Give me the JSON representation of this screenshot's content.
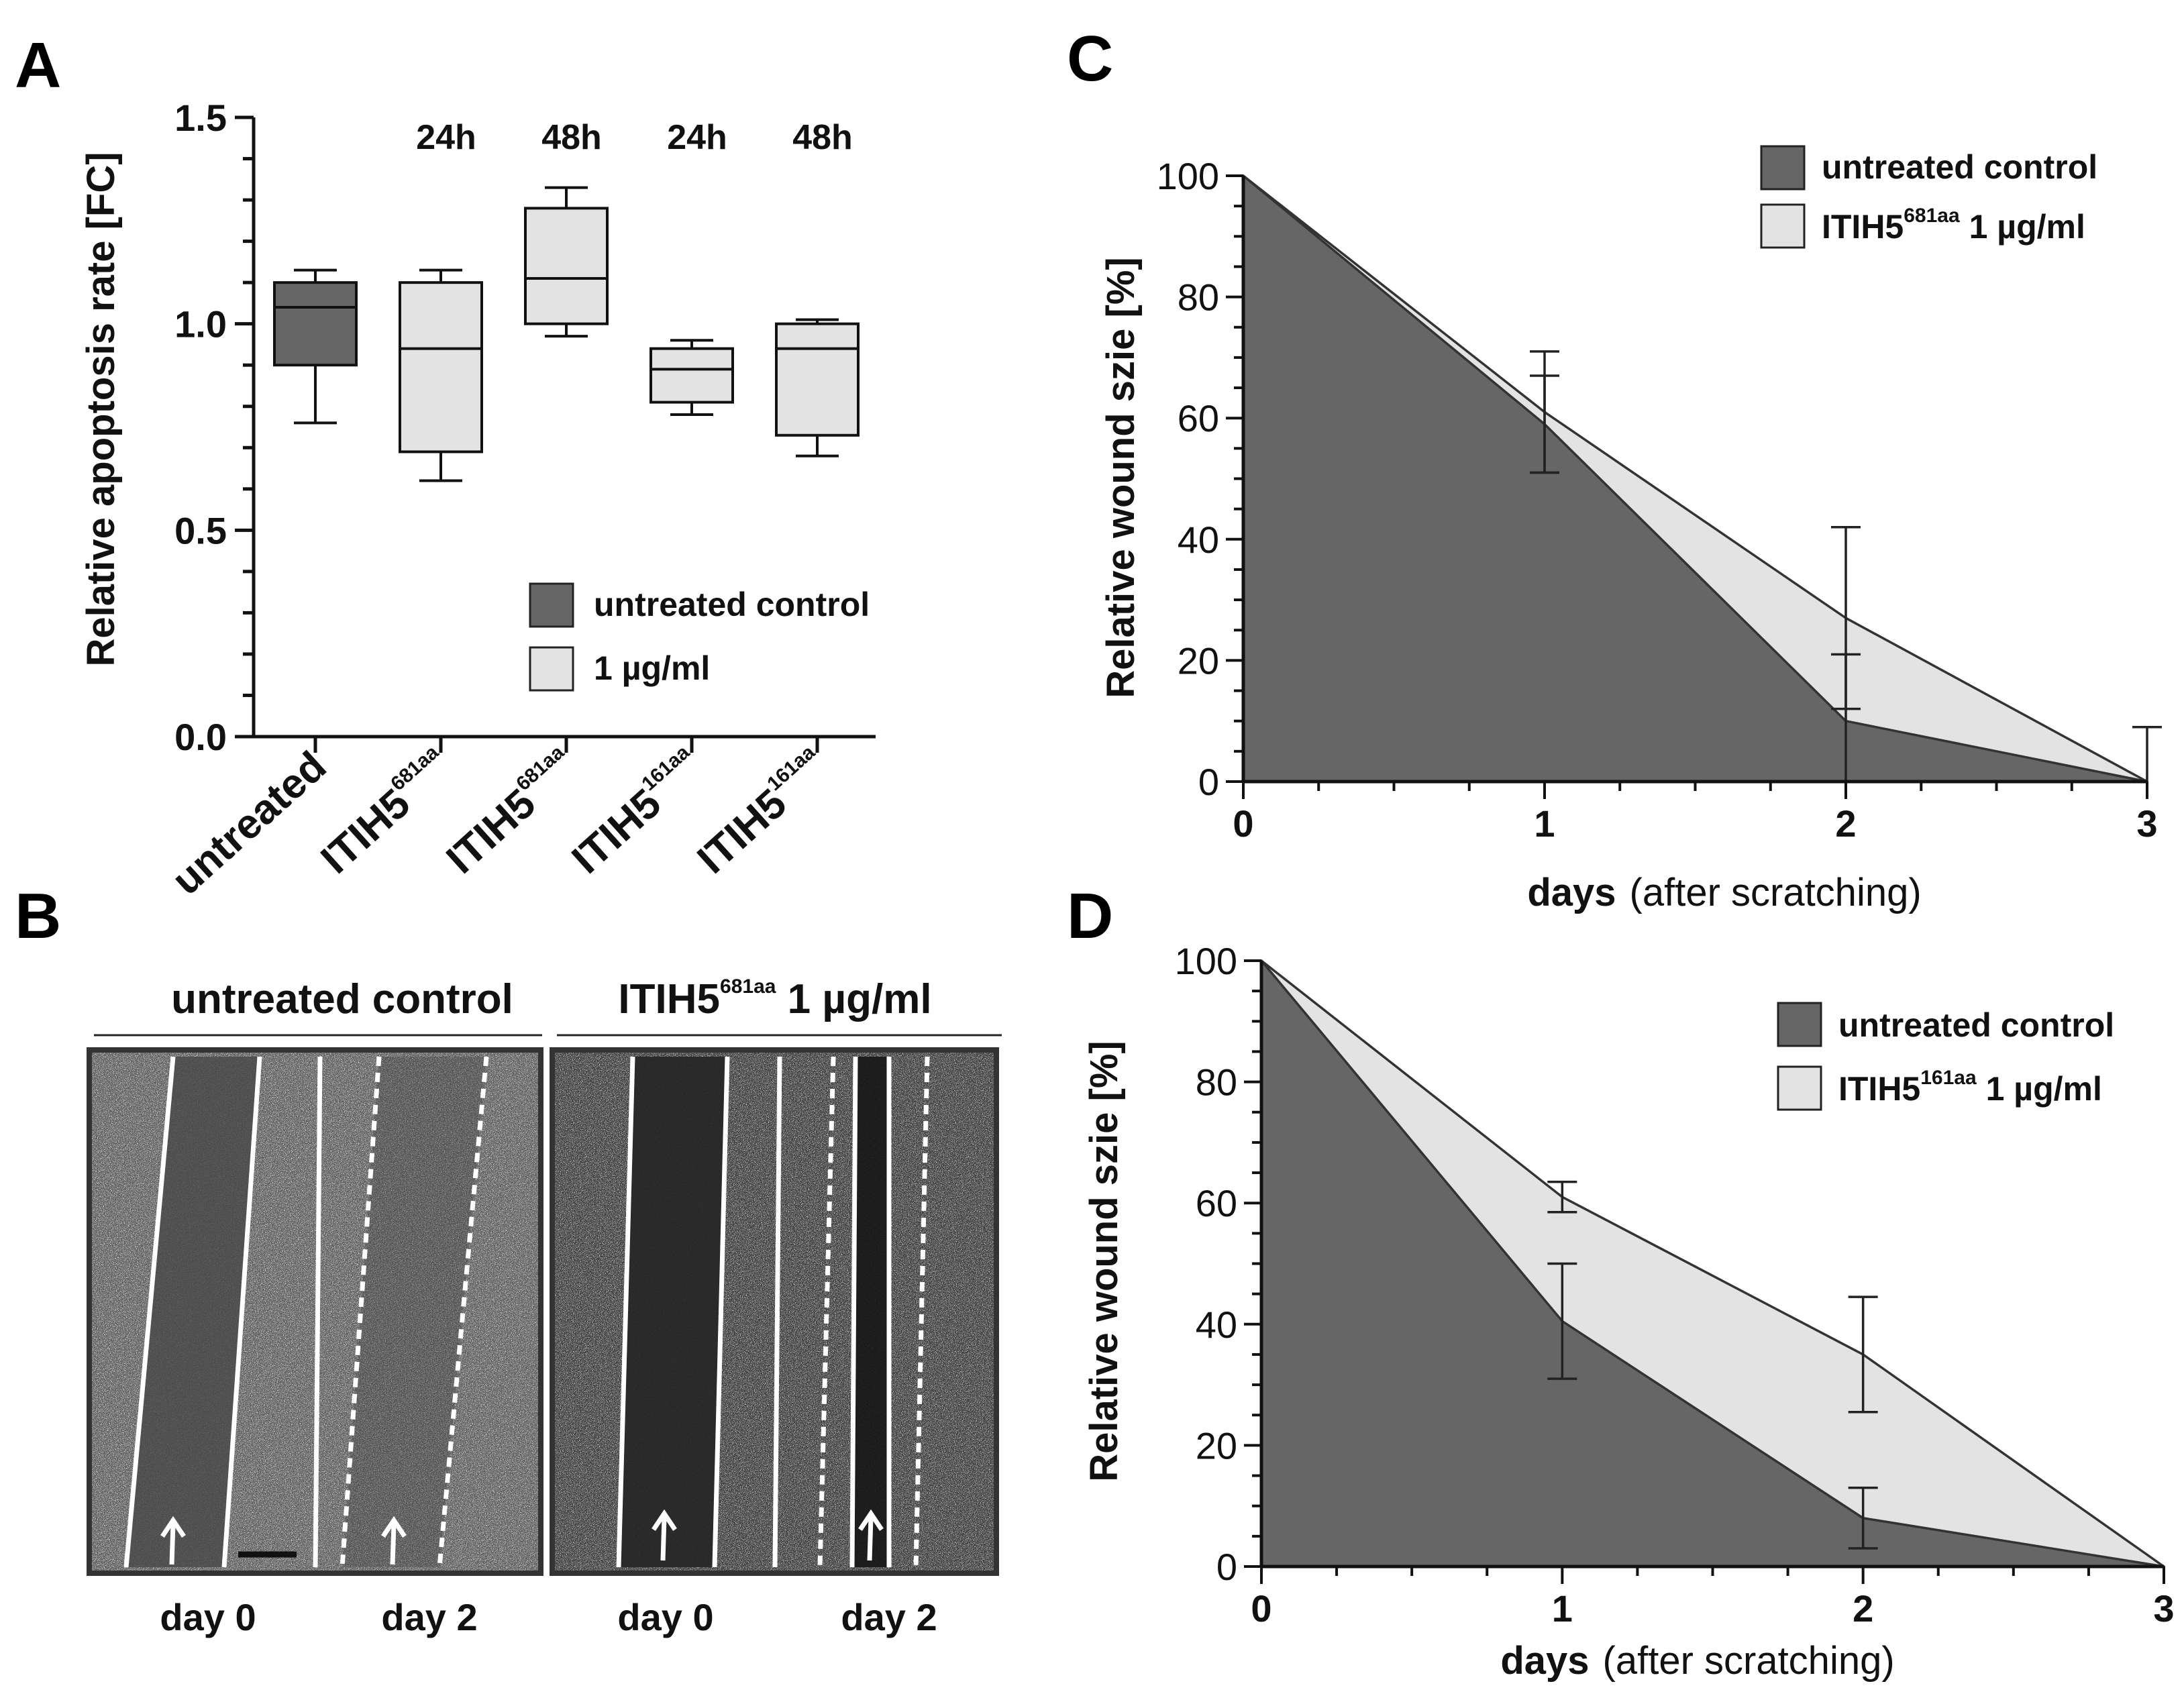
{
  "colors": {
    "dark": "#666666",
    "light": "#e3e3e3",
    "axis": "#111111"
  },
  "panels": {
    "A": "A",
    "B": "B",
    "C": "C",
    "D": "D"
  },
  "chart_data": [
    {
      "id": "A",
      "type": "box",
      "ylabel": "Relative apoptosis rate [FC]",
      "ylim": [
        0.0,
        1.5
      ],
      "yticks": [
        "0.0",
        "0.5",
        "1.0",
        "1.5"
      ],
      "categories": [
        {
          "main": "untreated",
          "sup": "",
          "time": "",
          "fill": "dark"
        },
        {
          "main": "ITIH5",
          "sup": "681aa",
          "time": "24h",
          "fill": "light"
        },
        {
          "main": "ITIH5",
          "sup": "681aa",
          "time": "48h",
          "fill": "light"
        },
        {
          "main": "ITIH5",
          "sup": "161aa",
          "time": "24h",
          "fill": "light"
        },
        {
          "main": "ITIH5",
          "sup": "161aa",
          "time": "48h",
          "fill": "light"
        }
      ],
      "boxes": [
        {
          "min": 0.76,
          "q1": 0.9,
          "median": 1.04,
          "q3": 1.1,
          "max": 1.13
        },
        {
          "min": 0.62,
          "q1": 0.69,
          "median": 0.94,
          "q3": 1.1,
          "max": 1.13
        },
        {
          "min": 0.97,
          "q1": 1.0,
          "median": 1.11,
          "q3": 1.28,
          "max": 1.33
        },
        {
          "min": 0.78,
          "q1": 0.81,
          "median": 0.89,
          "q3": 0.94,
          "max": 0.96
        },
        {
          "min": 0.68,
          "q1": 0.73,
          "median": 0.94,
          "q3": 1.0,
          "max": 1.01
        }
      ],
      "legend": [
        {
          "label": "untreated control",
          "fill": "dark"
        },
        {
          "label": "1 µg/ml",
          "fill": "light"
        }
      ]
    },
    {
      "id": "C",
      "type": "area",
      "ylabel": "Relative wound szie [%]",
      "xlabel_bold": "days",
      "xlabel_rest": "(after scratching)",
      "x": [
        0,
        1,
        2,
        3
      ],
      "ylim": [
        0,
        100
      ],
      "yticks": [
        0,
        20,
        40,
        60,
        80,
        100
      ],
      "xticks": [
        0,
        1,
        2,
        3
      ],
      "series": [
        {
          "name": "ITIH5681aa 1 µg/ml",
          "legend_main": "ITIH5",
          "legend_sup": "681aa",
          "legend_rest": " 1 µg/ml",
          "fill": "light",
          "values": [
            100,
            61,
            27,
            0
          ],
          "err": [
            0,
            10,
            15,
            9
          ]
        },
        {
          "name": "untreated control",
          "legend_main": "untreated control",
          "legend_sup": "",
          "legend_rest": "",
          "fill": "dark",
          "values": [
            100,
            59,
            10,
            0
          ],
          "err": [
            0,
            8,
            11,
            0
          ]
        }
      ]
    },
    {
      "id": "D",
      "type": "area",
      "ylabel": "Relative wound szie [%]",
      "xlabel_bold": "days",
      "xlabel_rest": "(after scratching)",
      "x": [
        0,
        1,
        2,
        3
      ],
      "ylim": [
        0,
        100
      ],
      "yticks": [
        0,
        20,
        40,
        60,
        80,
        100
      ],
      "xticks": [
        0,
        1,
        2,
        3
      ],
      "series": [
        {
          "name": "ITIH5161aa 1 µg/ml",
          "legend_main": "ITIH5",
          "legend_sup": "161aa",
          "legend_rest": " 1 µg/ml",
          "fill": "light",
          "values": [
            100,
            61,
            35,
            0
          ],
          "err": [
            0,
            2.5,
            9.5,
            0
          ]
        },
        {
          "name": "untreated control",
          "legend_main": "untreated control",
          "legend_sup": "",
          "legend_rest": "",
          "fill": "dark",
          "values": [
            100,
            40.5,
            8,
            0
          ],
          "err": [
            0,
            9.5,
            5,
            0
          ]
        }
      ]
    }
  ],
  "micrographs": {
    "left": {
      "title": "untreated control",
      "days": [
        "day 0",
        "day 2"
      ]
    },
    "right": {
      "title_main": "ITIH5",
      "title_sup": "681aa",
      "title_rest": " 1 µg/ml",
      "days": [
        "day 0",
        "day 2"
      ]
    }
  }
}
